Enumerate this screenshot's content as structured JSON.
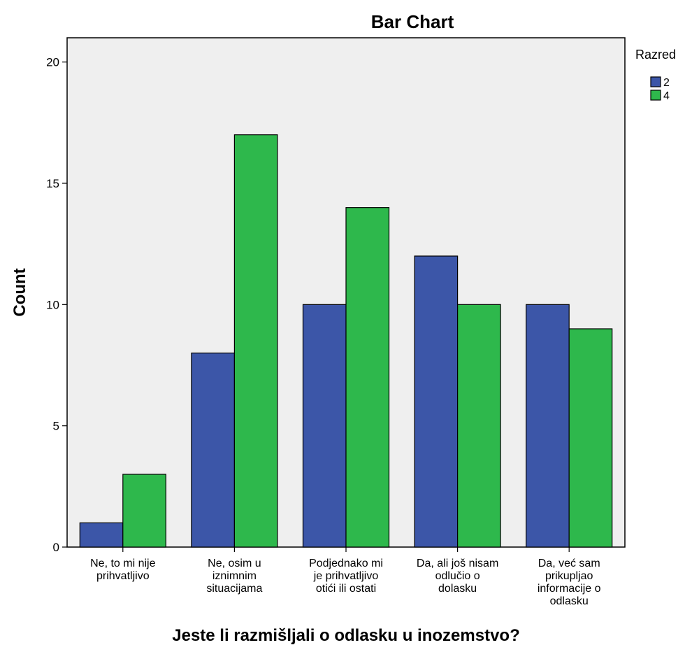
{
  "chart_data": {
    "type": "bar",
    "title": "Bar Chart",
    "xlabel": "Jeste li razmišljali o odlasku u inozemstvo?",
    "ylabel": "Count",
    "ylim": [
      0,
      21
    ],
    "yticks": [
      0,
      5,
      10,
      15,
      20
    ],
    "categories": [
      [
        "Ne, to mi nije",
        "prihvatljivo"
      ],
      [
        "Ne, osim u",
        "iznimnim",
        "situacijama"
      ],
      [
        "Podjednako mi",
        "je prihvatljivo",
        "otići ili ostati"
      ],
      [
        "Da, ali još nisam",
        "odlučio o",
        "dolasku"
      ],
      [
        "Da, već sam",
        "prikupljao",
        "informacije o",
        "odlasku"
      ]
    ],
    "series": [
      {
        "name": "2",
        "color": "#3C56A8",
        "values": [
          1,
          8,
          10,
          12,
          10
        ]
      },
      {
        "name": "4",
        "color": "#2EB84C",
        "values": [
          3,
          17,
          14,
          10,
          9
        ]
      }
    ],
    "legend": {
      "title": "Razred",
      "position": "top-right"
    },
    "plot_background": "#EFEFEF",
    "grid": false
  }
}
